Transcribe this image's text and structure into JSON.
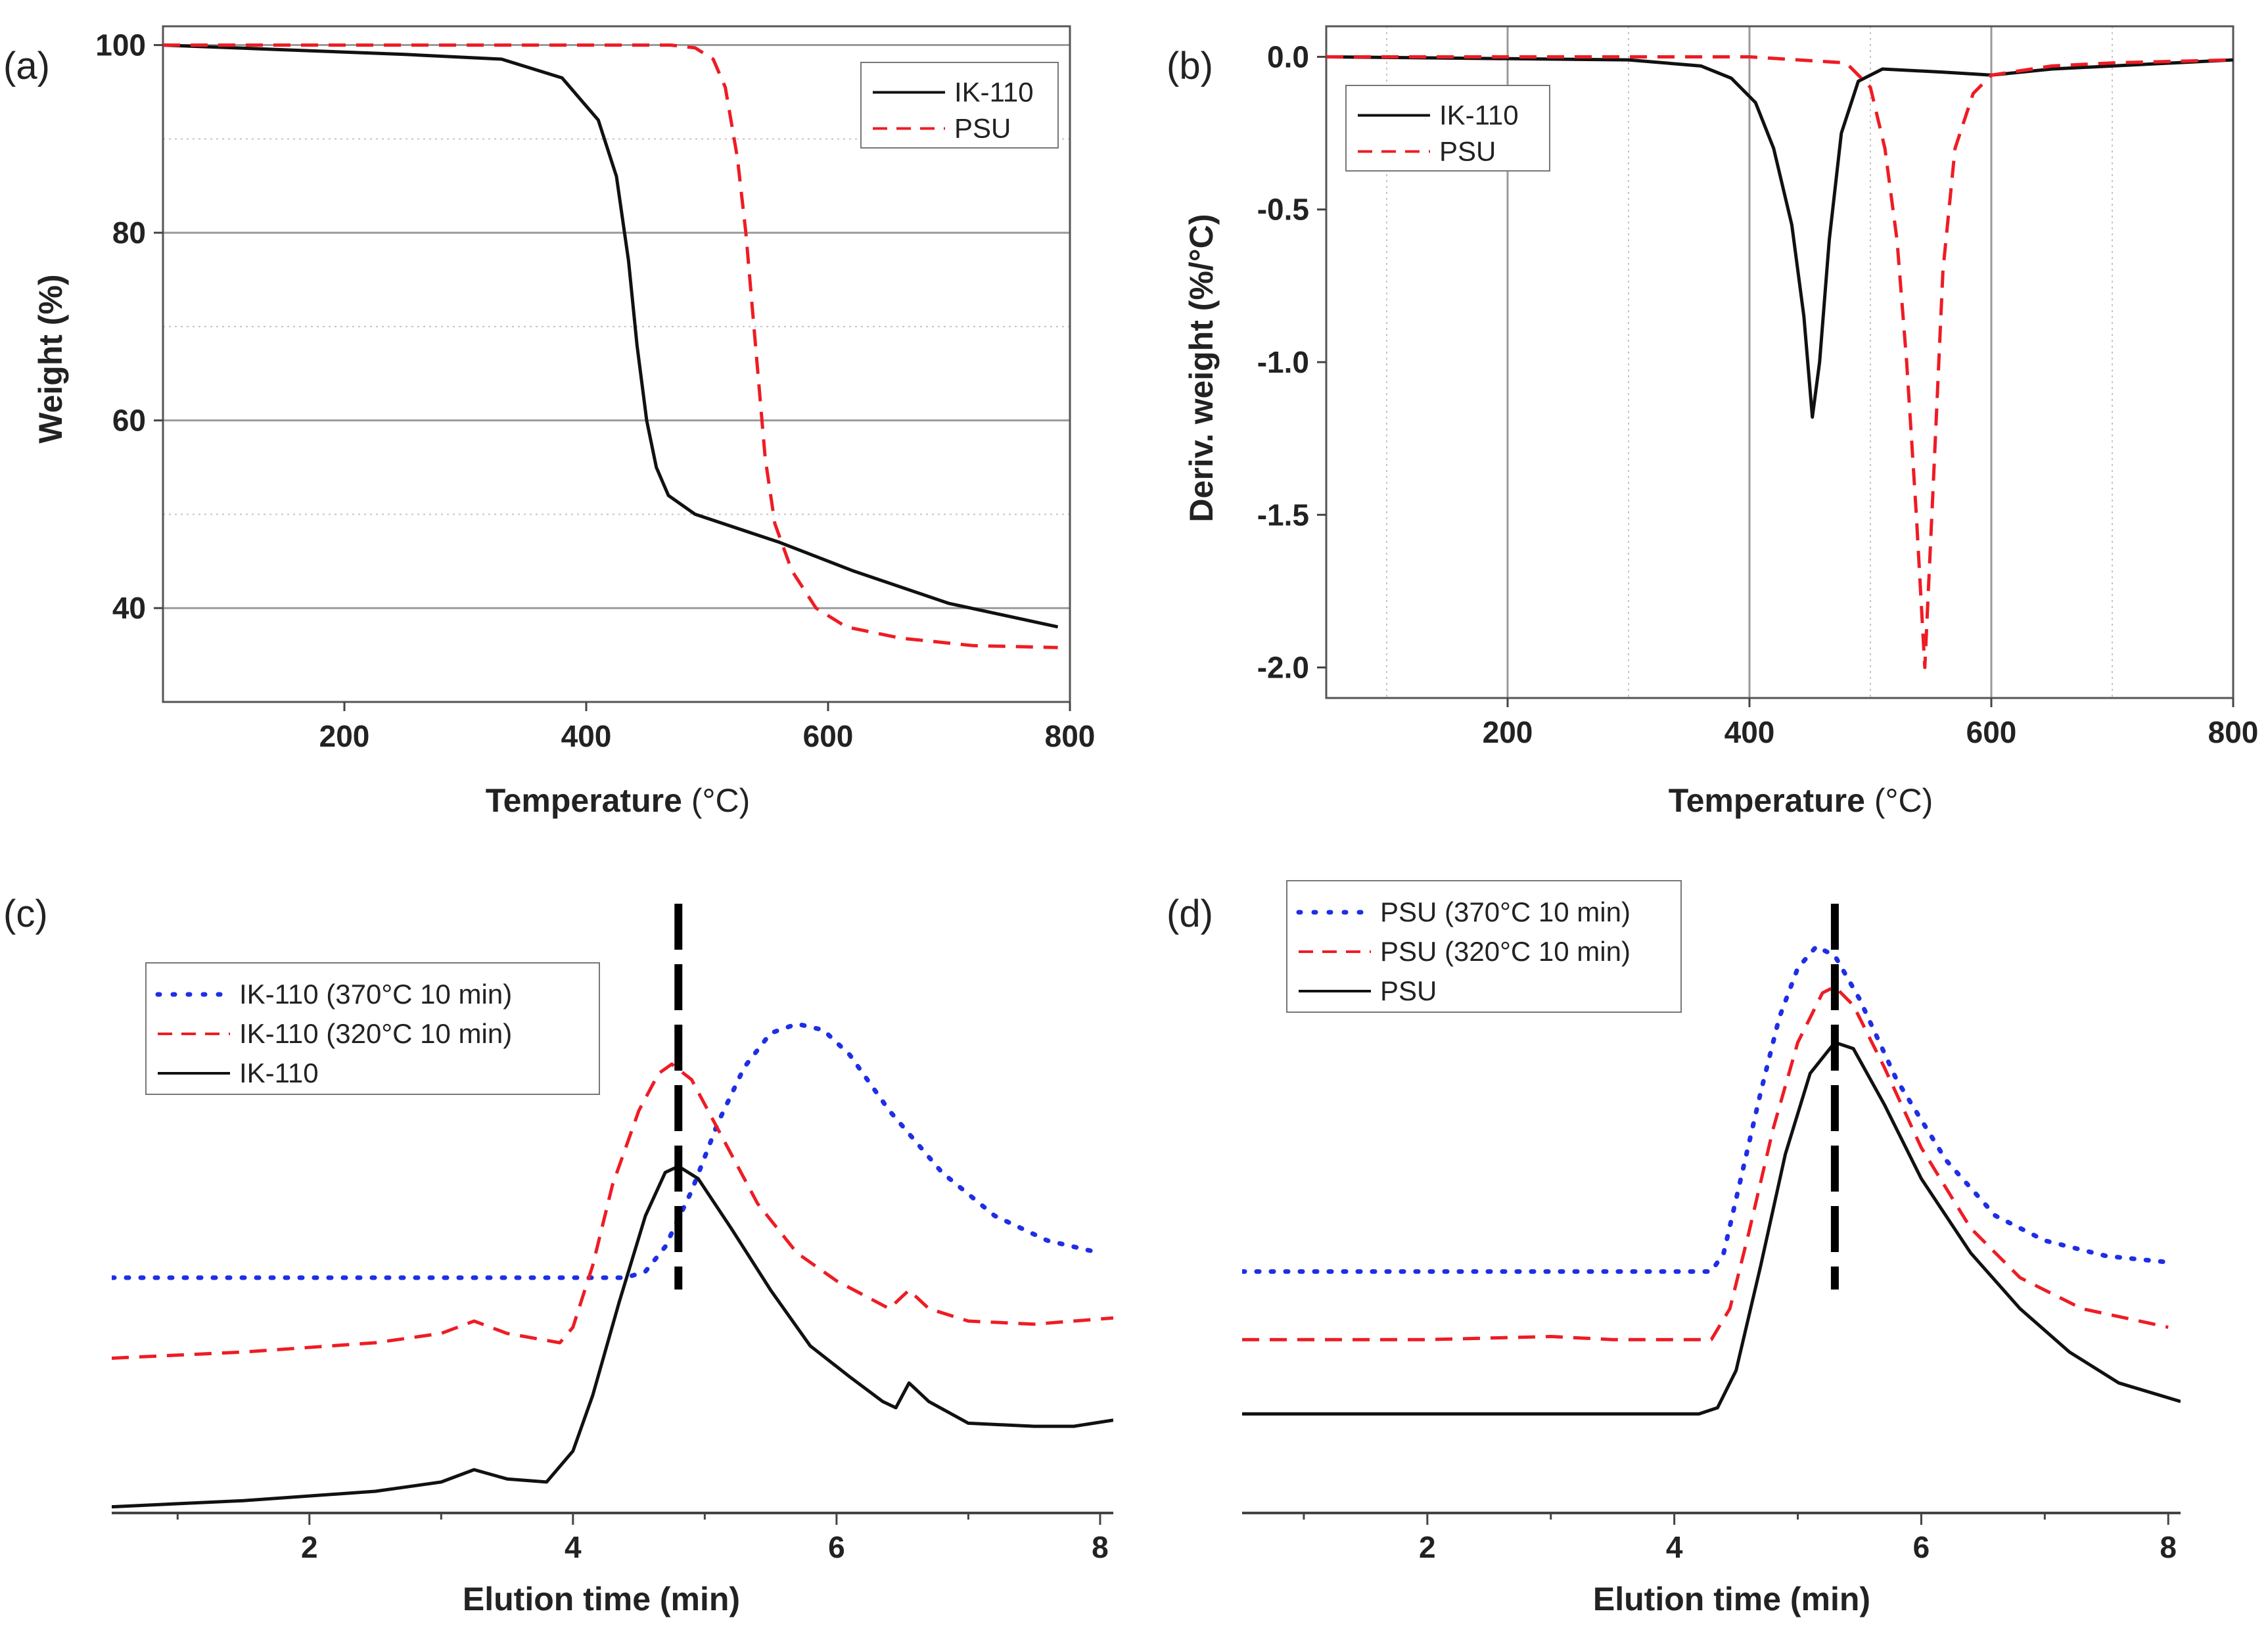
{
  "colors": {
    "black": "#111111",
    "red": "#ee1c24",
    "blue": "#1f2ee6",
    "dash": "#000000"
  },
  "chart_data": [
    {
      "id": "a",
      "panel_label": "(a)",
      "type": "line",
      "xlabel": "Temperature",
      "xunit": "(°C)",
      "ylabel": "Weight (%)",
      "xlim": [
        50,
        800
      ],
      "ylim": [
        30,
        102
      ],
      "xticks": [
        200,
        400,
        600,
        800
      ],
      "yticks": [
        40,
        60,
        80,
        100
      ],
      "minor_grid_y": [
        50,
        70,
        90
      ],
      "legend_position": "top-right",
      "series": [
        {
          "name": "IK-110",
          "style": "solid",
          "color": "#111111",
          "points": [
            [
              50,
              100
            ],
            [
              150,
              99.5
            ],
            [
              250,
              99
            ],
            [
              330,
              98.5
            ],
            [
              380,
              96.5
            ],
            [
              410,
              92
            ],
            [
              425,
              86
            ],
            [
              435,
              77
            ],
            [
              442,
              68
            ],
            [
              450,
              60
            ],
            [
              458,
              55
            ],
            [
              468,
              52
            ],
            [
              490,
              50
            ],
            [
              560,
              47
            ],
            [
              620,
              44
            ],
            [
              700,
              40.5
            ],
            [
              790,
              38
            ]
          ]
        },
        {
          "name": "PSU",
          "style": "dashed",
          "color": "#ee1c24",
          "points": [
            [
              50,
              100
            ],
            [
              470,
              100
            ],
            [
              490,
              99.7
            ],
            [
              505,
              98.5
            ],
            [
              515,
              95.5
            ],
            [
              525,
              88
            ],
            [
              532,
              80
            ],
            [
              540,
              68
            ],
            [
              548,
              56
            ],
            [
              556,
              49
            ],
            [
              570,
              44
            ],
            [
              590,
              40
            ],
            [
              615,
              38
            ],
            [
              660,
              36.8
            ],
            [
              720,
              36
            ],
            [
              790,
              35.8
            ]
          ]
        }
      ]
    },
    {
      "id": "b",
      "panel_label": "(b)",
      "type": "line",
      "xlabel": "Temperature",
      "xunit": "(°C)",
      "ylabel": "Deriv. weight (%/°C)",
      "xlim": [
        50,
        800
      ],
      "ylim": [
        -2.1,
        0.1
      ],
      "xticks": [
        200,
        400,
        600,
        800
      ],
      "yticks": [
        0.0,
        -0.5,
        -1.0,
        -1.5,
        -2.0
      ],
      "ytick_labels": [
        "0.0",
        "-0.5",
        "-1.0",
        "-1.5",
        "-2.0"
      ],
      "major_grid_x": [
        200,
        400,
        600
      ],
      "minor_grid_x": [
        100,
        300,
        500,
        700
      ],
      "legend_position": "top-left",
      "series": [
        {
          "name": "IK-110",
          "style": "solid",
          "color": "#111111",
          "points": [
            [
              50,
              0
            ],
            [
              300,
              -0.01
            ],
            [
              360,
              -0.03
            ],
            [
              385,
              -0.07
            ],
            [
              405,
              -0.15
            ],
            [
              420,
              -0.3
            ],
            [
              435,
              -0.55
            ],
            [
              445,
              -0.85
            ],
            [
              452,
              -1.18
            ],
            [
              458,
              -1.0
            ],
            [
              466,
              -0.6
            ],
            [
              476,
              -0.25
            ],
            [
              490,
              -0.08
            ],
            [
              510,
              -0.04
            ],
            [
              560,
              -0.05
            ],
            [
              600,
              -0.06
            ],
            [
              650,
              -0.04
            ],
            [
              700,
              -0.03
            ],
            [
              800,
              -0.01
            ]
          ]
        },
        {
          "name": "PSU",
          "style": "dashed",
          "color": "#ee1c24",
          "points": [
            [
              50,
              0
            ],
            [
              400,
              0
            ],
            [
              480,
              -0.02
            ],
            [
              500,
              -0.1
            ],
            [
              512,
              -0.3
            ],
            [
              522,
              -0.6
            ],
            [
              530,
              -1.0
            ],
            [
              538,
              -1.5
            ],
            [
              545,
              -2.0
            ],
            [
              552,
              -1.4
            ],
            [
              560,
              -0.7
            ],
            [
              570,
              -0.3
            ],
            [
              585,
              -0.12
            ],
            [
              600,
              -0.06
            ],
            [
              650,
              -0.03
            ],
            [
              700,
              -0.02
            ],
            [
              800,
              -0.01
            ]
          ]
        }
      ]
    },
    {
      "id": "c",
      "panel_label": "(c)",
      "type": "line",
      "xlabel": "Elution time (min)",
      "xlim": [
        0.5,
        8.1
      ],
      "ylim": [
        0,
        100
      ],
      "xticks": [
        2,
        4,
        6,
        8
      ],
      "marker_x": 4.8,
      "legend_position": "top-left",
      "series": [
        {
          "name": "IK-110 (370°C 10 min)",
          "style": "dotted",
          "color": "#1f2ee6",
          "points": [
            [
              0.5,
              38
            ],
            [
              4.4,
              38
            ],
            [
              4.55,
              39
            ],
            [
              4.7,
              43
            ],
            [
              4.9,
              52
            ],
            [
              5.1,
              63
            ],
            [
              5.3,
              72
            ],
            [
              5.5,
              77.5
            ],
            [
              5.7,
              79
            ],
            [
              5.9,
              78
            ],
            [
              6.1,
              74
            ],
            [
              6.4,
              65
            ],
            [
              6.8,
              55
            ],
            [
              7.2,
              48
            ],
            [
              7.6,
              44
            ],
            [
              8.0,
              42
            ]
          ]
        },
        {
          "name": "IK-110 (320°C 10 min)",
          "style": "dashed",
          "color": "#ee1c24",
          "points": [
            [
              0.5,
              25
            ],
            [
              1.5,
              26
            ],
            [
              2.5,
              27.5
            ],
            [
              3.0,
              29
            ],
            [
              3.25,
              31
            ],
            [
              3.5,
              29
            ],
            [
              3.9,
              27.5
            ],
            [
              4.0,
              30
            ],
            [
              4.15,
              40
            ],
            [
              4.3,
              53
            ],
            [
              4.5,
              65
            ],
            [
              4.65,
              71
            ],
            [
              4.75,
              72.5
            ],
            [
              4.9,
              70
            ],
            [
              5.1,
              62
            ],
            [
              5.4,
              50
            ],
            [
              5.7,
              42
            ],
            [
              6.0,
              37.5
            ],
            [
              6.4,
              33
            ],
            [
              6.55,
              36
            ],
            [
              6.7,
              33
            ],
            [
              7.0,
              31
            ],
            [
              7.5,
              30.5
            ],
            [
              8.1,
              31.5
            ]
          ]
        },
        {
          "name": "IK-110",
          "style": "solid",
          "color": "#111111",
          "points": [
            [
              0.5,
              1
            ],
            [
              1.5,
              2
            ],
            [
              2.5,
              3.5
            ],
            [
              3.0,
              5
            ],
            [
              3.25,
              7
            ],
            [
              3.5,
              5.5
            ],
            [
              3.8,
              5
            ],
            [
              4.0,
              10
            ],
            [
              4.15,
              19
            ],
            [
              4.35,
              34
            ],
            [
              4.55,
              48
            ],
            [
              4.7,
              55
            ],
            [
              4.8,
              56
            ],
            [
              4.95,
              54
            ],
            [
              5.2,
              46
            ],
            [
              5.5,
              36
            ],
            [
              5.8,
              27
            ],
            [
              6.1,
              22
            ],
            [
              6.35,
              18
            ],
            [
              6.45,
              17
            ],
            [
              6.55,
              21
            ],
            [
              6.7,
              18
            ],
            [
              7.0,
              14.5
            ],
            [
              7.5,
              14
            ],
            [
              7.8,
              14
            ],
            [
              8.1,
              15
            ]
          ]
        }
      ]
    },
    {
      "id": "d",
      "panel_label": "(d)",
      "type": "line",
      "xlabel": "Elution time (min)",
      "xlim": [
        0.5,
        8.1
      ],
      "ylim": [
        0,
        100
      ],
      "xticks": [
        2,
        4,
        6,
        8
      ],
      "marker_x": 5.3,
      "legend_position": "top-left",
      "series": [
        {
          "name": "PSU (370°C 10 min)",
          "style": "dotted",
          "color": "#1f2ee6",
          "points": [
            [
              0.5,
              39
            ],
            [
              4.3,
              39
            ],
            [
              4.4,
              42
            ],
            [
              4.55,
              55
            ],
            [
              4.7,
              68
            ],
            [
              4.85,
              80
            ],
            [
              5.0,
              88
            ],
            [
              5.15,
              91.5
            ],
            [
              5.3,
              90
            ],
            [
              5.5,
              83
            ],
            [
              5.8,
              70
            ],
            [
              6.2,
              57
            ],
            [
              6.6,
              48
            ],
            [
              7.0,
              44
            ],
            [
              7.5,
              41.5
            ],
            [
              8.0,
              40.5
            ]
          ]
        },
        {
          "name": "PSU (320°C 10 min)",
          "style": "dashed",
          "color": "#ee1c24",
          "points": [
            [
              0.5,
              28
            ],
            [
              2.0,
              28
            ],
            [
              3.0,
              28.5
            ],
            [
              3.5,
              28
            ],
            [
              4.3,
              28
            ],
            [
              4.45,
              33
            ],
            [
              4.6,
              45
            ],
            [
              4.8,
              62
            ],
            [
              5.0,
              76
            ],
            [
              5.2,
              84
            ],
            [
              5.3,
              85
            ],
            [
              5.45,
              82
            ],
            [
              5.7,
              72
            ],
            [
              6.0,
              59
            ],
            [
              6.4,
              46
            ],
            [
              6.8,
              38
            ],
            [
              7.3,
              33
            ],
            [
              8.0,
              30
            ]
          ]
        },
        {
          "name": "PSU",
          "style": "solid",
          "color": "#111111",
          "points": [
            [
              0.5,
              16
            ],
            [
              4.2,
              16
            ],
            [
              4.35,
              17
            ],
            [
              4.5,
              23
            ],
            [
              4.7,
              40
            ],
            [
              4.9,
              58
            ],
            [
              5.1,
              71
            ],
            [
              5.3,
              76
            ],
            [
              5.45,
              75
            ],
            [
              5.7,
              66
            ],
            [
              6.0,
              54
            ],
            [
              6.4,
              42
            ],
            [
              6.8,
              33
            ],
            [
              7.2,
              26
            ],
            [
              7.6,
              21
            ],
            [
              8.1,
              18
            ]
          ]
        }
      ]
    }
  ]
}
